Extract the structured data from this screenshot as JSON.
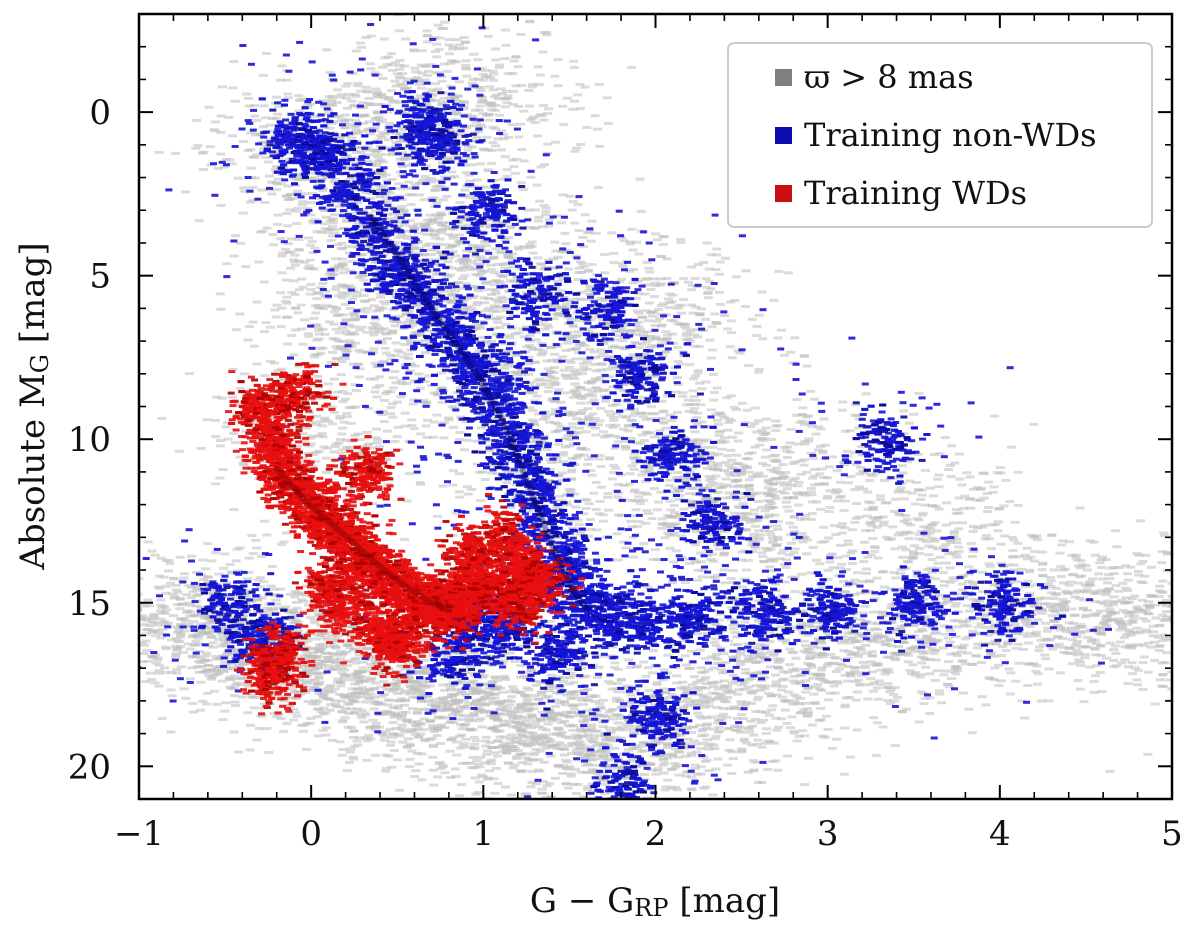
{
  "chart_data": {
    "type": "scatter",
    "title": "",
    "xlabel": {
      "base": "G − G",
      "sub": "RP",
      "unit": " [mag]"
    },
    "ylabel": {
      "base": "Absolute M",
      "sub": "G",
      "unit": " [mag]"
    },
    "xlim": [
      -1,
      5
    ],
    "ylim": [
      21,
      -3
    ],
    "y_inverted": true,
    "x_ticks": [
      -1,
      0,
      1,
      2,
      3,
      4,
      5
    ],
    "x_tick_labels": [
      "−1",
      "0",
      "1",
      "2",
      "3",
      "4",
      "5"
    ],
    "y_ticks": [
      0,
      5,
      10,
      15,
      20
    ],
    "y_tick_labels": [
      "0",
      "5",
      "10",
      "15",
      "20"
    ],
    "grid": false,
    "legend_position": "top-right",
    "series": [
      {
        "name": "ϖ > 8 mas",
        "color": "#bdbdbd",
        "legend_color": "#7f7f7f",
        "description_points": [
          [
            -0.8,
            15.4
          ],
          [
            -0.5,
            15.8
          ],
          [
            -0.2,
            16.2
          ],
          [
            0.0,
            16.8
          ],
          [
            0.3,
            17.3
          ],
          [
            0.6,
            17.8
          ],
          [
            0.9,
            18.2
          ],
          [
            1.2,
            18.6
          ],
          [
            1.5,
            19.0
          ],
          [
            1.8,
            19.5
          ],
          [
            2.2,
            18.3
          ],
          [
            2.6,
            17.2
          ],
          [
            3.0,
            16.3
          ],
          [
            3.5,
            15.8
          ],
          [
            4.0,
            15.4
          ],
          [
            4.5,
            15.2
          ],
          [
            4.9,
            15.4
          ],
          [
            0.0,
            1.0
          ],
          [
            0.2,
            2.0
          ],
          [
            0.4,
            3.5
          ],
          [
            0.7,
            5.5
          ],
          [
            1.0,
            8.0
          ],
          [
            1.3,
            11.0
          ],
          [
            1.8,
            9.0
          ],
          [
            2.2,
            11.5
          ],
          [
            2.5,
            13.0
          ],
          [
            0.6,
            0.0
          ],
          [
            0.9,
            -0.5
          ],
          [
            1.0,
            4.0
          ],
          [
            1.5,
            6.5
          ],
          [
            2.0,
            6.0
          ],
          [
            2.8,
            10.5
          ],
          [
            3.5,
            12.5
          ],
          [
            0.2,
            6.0
          ],
          [
            0.0,
            9.5
          ]
        ]
      },
      {
        "name": "Training non-WDs",
        "color": "#1515d6",
        "description_points": [
          [
            -0.1,
            0.8
          ],
          [
            0.05,
            1.2
          ],
          [
            0.2,
            2.2
          ],
          [
            0.35,
            3.5
          ],
          [
            0.5,
            4.8
          ],
          [
            0.65,
            5.8
          ],
          [
            0.8,
            6.8
          ],
          [
            0.95,
            7.8
          ],
          [
            1.05,
            8.8
          ],
          [
            1.15,
            10.0
          ],
          [
            1.25,
            11.3
          ],
          [
            1.35,
            12.6
          ],
          [
            1.45,
            13.8
          ],
          [
            1.55,
            15.0
          ],
          [
            1.7,
            15.4
          ],
          [
            1.9,
            15.6
          ],
          [
            2.2,
            15.5
          ],
          [
            2.6,
            15.3
          ],
          [
            3.0,
            15.2
          ],
          [
            0.9,
            15.3
          ],
          [
            1.1,
            15.8
          ],
          [
            1.4,
            16.5
          ],
          [
            0.65,
            0.3
          ],
          [
            0.7,
            0.9
          ],
          [
            1.9,
            8.0
          ],
          [
            2.1,
            10.5
          ],
          [
            2.3,
            12.5
          ],
          [
            1.7,
            6.0
          ],
          [
            1.0,
            3.0
          ],
          [
            1.3,
            5.5
          ],
          [
            3.5,
            15.0
          ],
          [
            4.0,
            15.0
          ],
          [
            3.3,
            10.0
          ],
          [
            1.8,
            20.5
          ],
          [
            2.0,
            18.5
          ],
          [
            0.8,
            16.6
          ],
          [
            -0.5,
            15.0
          ],
          [
            -0.3,
            16.0
          ]
        ]
      },
      {
        "name": "Training WDs",
        "color": "#e81010",
        "description_points": [
          [
            -0.3,
            9.0
          ],
          [
            -0.25,
            10.0
          ],
          [
            -0.2,
            10.8
          ],
          [
            -0.1,
            11.5
          ],
          [
            0.0,
            12.0
          ],
          [
            0.1,
            12.6
          ],
          [
            0.2,
            13.1
          ],
          [
            0.3,
            13.6
          ],
          [
            0.4,
            14.1
          ],
          [
            0.5,
            14.5
          ],
          [
            0.6,
            14.9
          ],
          [
            0.7,
            15.2
          ],
          [
            0.8,
            15.1
          ],
          [
            0.9,
            14.7
          ],
          [
            1.0,
            14.4
          ],
          [
            1.2,
            14.0
          ],
          [
            1.3,
            14.2
          ],
          [
            0.1,
            14.5
          ],
          [
            0.2,
            15.2
          ],
          [
            0.4,
            16.0
          ],
          [
            -0.2,
            16.5
          ],
          [
            -0.25,
            17.2
          ],
          [
            0.5,
            16.2
          ],
          [
            0.9,
            13.5
          ],
          [
            1.1,
            13.0
          ],
          [
            0.3,
            11.0
          ],
          [
            -0.1,
            8.5
          ],
          [
            1.2,
            15.0
          ]
        ]
      }
    ]
  },
  "legend": {
    "items": [
      {
        "label": "ϖ > 8 mas",
        "color": "#7f7f7f"
      },
      {
        "label": "Training non-WDs",
        "color": "#0b0bb0"
      },
      {
        "label": "Training WDs",
        "color": "#c81010"
      }
    ]
  }
}
